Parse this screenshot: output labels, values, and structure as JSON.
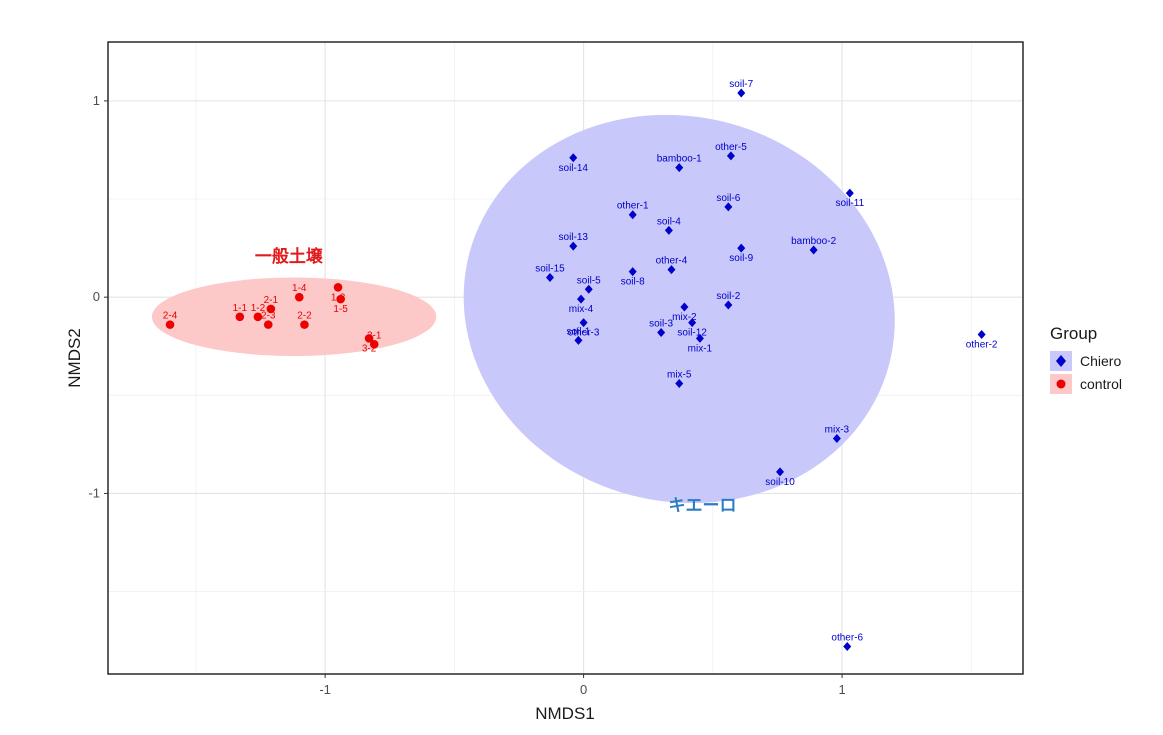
{
  "chart_data": {
    "type": "scatter",
    "xlabel": "NMDS1",
    "ylabel": "NMDS2",
    "xlim": [
      -1.84,
      1.7
    ],
    "ylim": [
      -1.92,
      1.3
    ],
    "x_ticks": [
      -1,
      0,
      1
    ],
    "y_ticks": [
      1,
      0,
      -1
    ],
    "grid": true,
    "legend": {
      "title": "Group",
      "position": "right"
    },
    "series": [
      {
        "name": "Chiero",
        "color": "#0000cc",
        "marker": "diamond",
        "ellipse_color": "#c8c8fa",
        "ellipse": {
          "cx": 0.37,
          "cy": -0.06,
          "rx": 0.84,
          "ry": 0.98,
          "angle_deg": 15
        },
        "points": [
          {
            "label": "soil-7",
            "x": 0.61,
            "y": 1.04
          },
          {
            "label": "other-5",
            "x": 0.57,
            "y": 0.72
          },
          {
            "label": "soil-14",
            "x": -0.04,
            "y": 0.71
          },
          {
            "label": "bamboo-1",
            "x": 0.37,
            "y": 0.66
          },
          {
            "label": "soil-11",
            "x": 1.03,
            "y": 0.53
          },
          {
            "label": "other-1",
            "x": 0.19,
            "y": 0.42
          },
          {
            "label": "soil-6",
            "x": 0.56,
            "y": 0.46
          },
          {
            "label": "soil-4",
            "x": 0.33,
            "y": 0.34
          },
          {
            "label": "soil-13",
            "x": -0.04,
            "y": 0.26
          },
          {
            "label": "soil-9",
            "x": 0.61,
            "y": 0.25
          },
          {
            "label": "bamboo-2",
            "x": 0.89,
            "y": 0.24
          },
          {
            "label": "soil-8",
            "x": 0.19,
            "y": 0.13
          },
          {
            "label": "other-4",
            "x": 0.34,
            "y": 0.14
          },
          {
            "label": "soil-15",
            "x": -0.13,
            "y": 0.1
          },
          {
            "label": "soil-5",
            "x": 0.02,
            "y": 0.04
          },
          {
            "label": "mix-2",
            "x": 0.39,
            "y": -0.05
          },
          {
            "label": "soil-2",
            "x": 0.56,
            "y": -0.04
          },
          {
            "label": "mix-4",
            "x": -0.01,
            "y": -0.01
          },
          {
            "label": "soil-12",
            "x": 0.42,
            "y": -0.13
          },
          {
            "label": "other-3",
            "x": 0.0,
            "y": -0.13
          },
          {
            "label": "soil-3",
            "x": 0.3,
            "y": -0.18
          },
          {
            "label": "soil-1",
            "x": -0.02,
            "y": -0.22
          },
          {
            "label": "mix-1",
            "x": 0.45,
            "y": -0.21
          },
          {
            "label": "other-2",
            "x": 1.54,
            "y": -0.19
          },
          {
            "label": "mix-5",
            "x": 0.37,
            "y": -0.44
          },
          {
            "label": "mix-3",
            "x": 0.98,
            "y": -0.72
          },
          {
            "label": "soil-10",
            "x": 0.76,
            "y": -0.89
          },
          {
            "label": "other-6",
            "x": 1.02,
            "y": -1.78
          }
        ]
      },
      {
        "name": "control",
        "color": "#ee0000",
        "marker": "circle",
        "ellipse_color": "#fcc8c8",
        "ellipse": {
          "cx": -1.12,
          "cy": -0.1,
          "rx": 0.55,
          "ry": 0.2,
          "angle_deg": 0
        },
        "points": [
          {
            "label": "1-3",
            "x": -0.95,
            "y": 0.05
          },
          {
            "label": "1-4",
            "x": -1.1,
            "y": 0.0
          },
          {
            "label": "1-5",
            "x": -0.94,
            "y": -0.01
          },
          {
            "label": "2-1",
            "x": -1.21,
            "y": -0.06
          },
          {
            "label": "1-1",
            "x": -1.33,
            "y": -0.1
          },
          {
            "label": "1-2",
            "x": -1.26,
            "y": -0.1
          },
          {
            "label": "2-2",
            "x": -1.08,
            "y": -0.14
          },
          {
            "label": "2-3",
            "x": -1.22,
            "y": -0.14
          },
          {
            "label": "2-4",
            "x": -1.6,
            "y": -0.14
          },
          {
            "label": "3-2",
            "x": -0.83,
            "y": -0.21
          },
          {
            "label": "3-1",
            "x": -0.81,
            "y": -0.24
          }
        ]
      }
    ],
    "annotations": [
      {
        "text": "一般土壌",
        "x": -1.14,
        "y": 0.18,
        "color": "#e31a1c"
      },
      {
        "text": "キエーロ",
        "x": 0.46,
        "y": -1.09,
        "color": "#2b7cc4"
      }
    ]
  }
}
